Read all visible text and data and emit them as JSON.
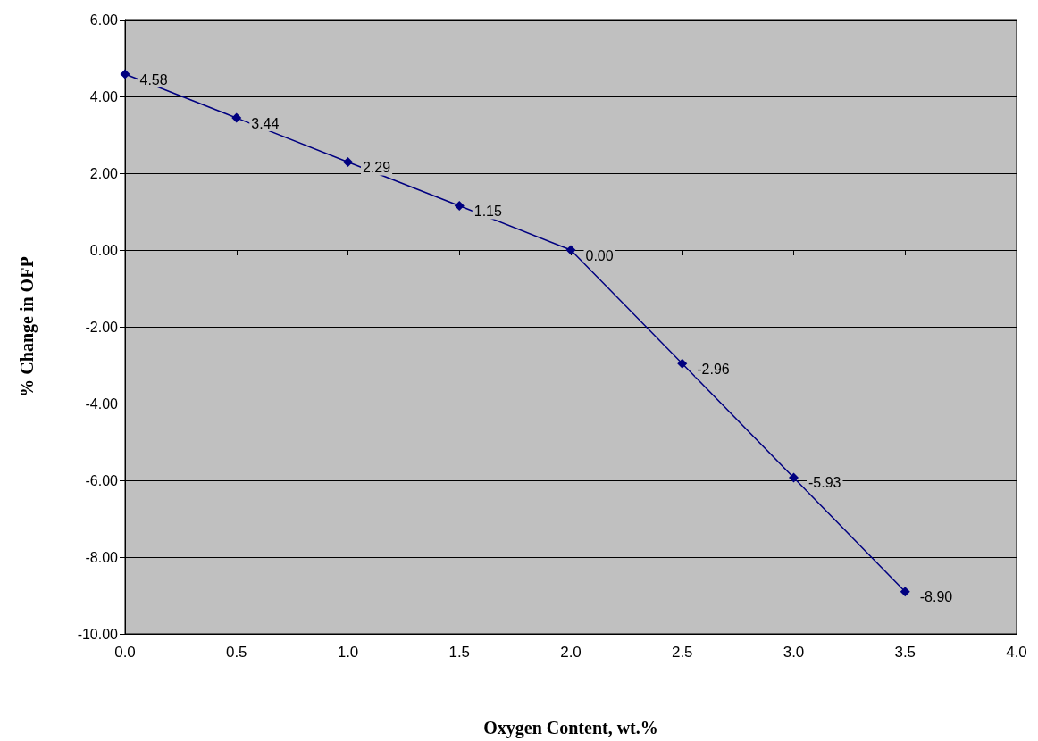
{
  "chart_data": {
    "type": "line",
    "xlabel": "Oxygen Content, wt.%",
    "ylabel": "% Change in OFP",
    "x": [
      0,
      0.5,
      1,
      1.5,
      2,
      2.5,
      3,
      3.5
    ],
    "series": [
      {
        "color": "#000080",
        "values": [
          4.58,
          3.44,
          2.29,
          1.15,
          0.0,
          -2.96,
          -5.93,
          -8.9
        ]
      }
    ],
    "xlim": [
      0,
      4
    ],
    "xticks": [
      {
        "value": 0,
        "label": "0.0"
      },
      {
        "value": 0.5,
        "label": "0.5"
      },
      {
        "value": 1,
        "label": "1.0"
      },
      {
        "value": 1.5,
        "label": "1.5"
      },
      {
        "value": 2,
        "label": "2.0"
      },
      {
        "value": 2.5,
        "label": "2.5"
      },
      {
        "value": 3,
        "label": "3.0"
      },
      {
        "value": 3.5,
        "label": "3.5"
      },
      {
        "value": 4,
        "label": "4.0"
      }
    ],
    "ylim": [
      -10,
      6
    ],
    "yticks": [
      {
        "value": -10,
        "label": "-10.00"
      },
      {
        "value": -8,
        "label": "-8.00"
      },
      {
        "value": -6,
        "label": "-6.00"
      },
      {
        "value": -4,
        "label": "-4.00"
      },
      {
        "value": -2,
        "label": "-2.00"
      },
      {
        "value": 0,
        "label": "0.00"
      },
      {
        "value": 2,
        "label": "2.00"
      },
      {
        "value": 4,
        "label": "4.00"
      },
      {
        "value": 6,
        "label": "6.00"
      }
    ],
    "value_labels": [
      "4.58",
      "3.44",
      "2.29",
      "1.15",
      "0.00",
      "-2.96",
      "-5.93",
      "-8.90"
    ],
    "grid": "y",
    "marker": "diamond",
    "line_style": "solid"
  }
}
